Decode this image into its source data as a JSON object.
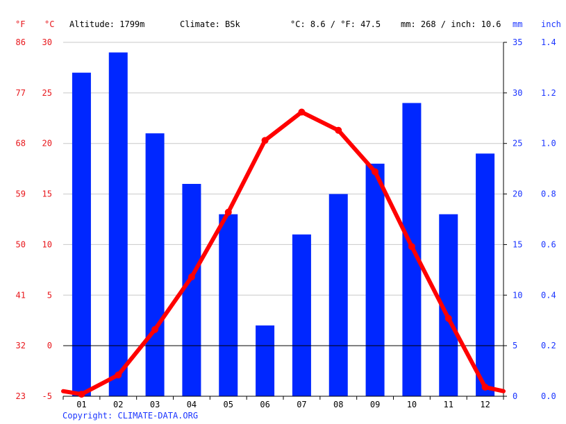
{
  "header": {
    "unit_f": "°F",
    "unit_c": "°C",
    "altitude": "Altitude: 1799m",
    "climate": "Climate: BSk",
    "temp_avg": "°C: 8.6 / °F: 47.5",
    "precip_total": "mm: 268 / inch: 10.6",
    "unit_mm": "mm",
    "unit_inch": "inch"
  },
  "footer": {
    "copyright": "Copyright: CLIMATE-DATA.ORG"
  },
  "colors": {
    "bars": "#0027ff",
    "line": "#ff0000",
    "red_text": "#e8161b",
    "blue_text": "#1a34ff",
    "grid": "#c8c8c8"
  },
  "chart_data": {
    "type": "bar",
    "categories": [
      "01",
      "02",
      "03",
      "04",
      "05",
      "06",
      "07",
      "08",
      "09",
      "10",
      "11",
      "12"
    ],
    "series": [
      {
        "type": "bar",
        "axis": "right",
        "values": [
          32,
          34,
          26,
          21,
          18,
          7,
          16,
          20,
          23,
          29,
          18,
          24
        ]
      },
      {
        "type": "line",
        "axis": "left",
        "values": [
          -4.8,
          -2.9,
          1.6,
          6.8,
          13.2,
          20.3,
          23.1,
          21.3,
          17.2,
          9.8,
          2.7,
          -4.1
        ]
      }
    ],
    "edge_line_values": {
      "start": -4.5,
      "end": -4.5
    },
    "left_axis_c": {
      "ticks": [
        30,
        25,
        20,
        15,
        10,
        5,
        0,
        -5
      ],
      "range": [
        -5,
        30
      ]
    },
    "left_axis_f": {
      "ticks": [
        86,
        77,
        68,
        59,
        50,
        41,
        32,
        23
      ]
    },
    "right_axis_mm": {
      "ticks": [
        35,
        30,
        25,
        20,
        15,
        10,
        5,
        0
      ],
      "range": [
        0,
        35
      ]
    },
    "right_axis_inch": {
      "ticks": [
        "1.4",
        "1.2",
        "1.0",
        "0.8",
        "0.6",
        "0.4",
        "0.2",
        "0.0"
      ]
    },
    "grid": true,
    "zero_line": true
  }
}
